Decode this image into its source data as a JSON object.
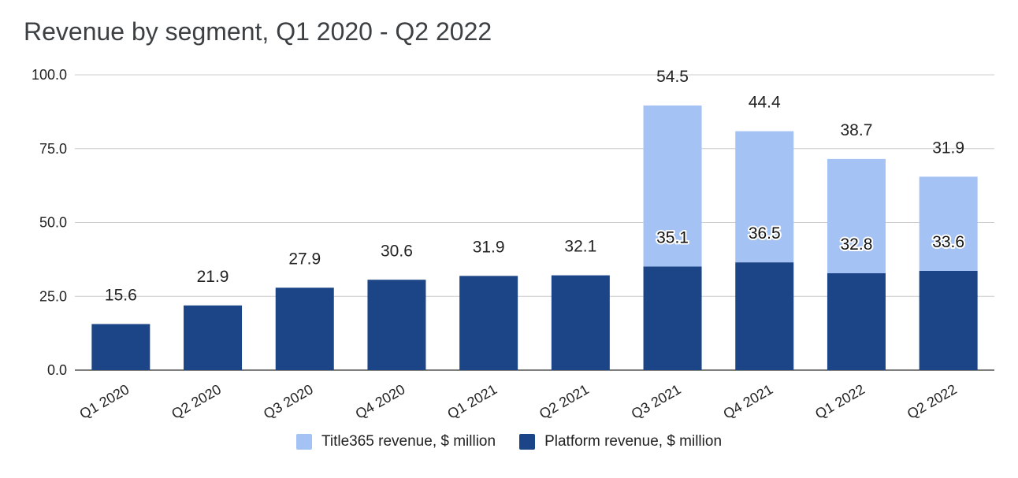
{
  "chart_data": {
    "type": "bar",
    "stacked": true,
    "title": "Revenue by segment, Q1 2020 - Q2 2022",
    "categories": [
      "Q1 2020",
      "Q2 2020",
      "Q3 2020",
      "Q4 2020",
      "Q1 2021",
      "Q2 2021",
      "Q3 2021",
      "Q4 2021",
      "Q1 2022",
      "Q2 2022"
    ],
    "series": [
      {
        "name": "Platform revenue, $ million",
        "color": "#1c4587",
        "values": [
          15.6,
          21.9,
          27.9,
          30.6,
          31.9,
          32.1,
          35.1,
          36.5,
          32.8,
          33.6
        ]
      },
      {
        "name": "Title365 revenue, $ million",
        "color": "#a4c2f4",
        "values": [
          null,
          null,
          null,
          null,
          null,
          null,
          54.5,
          44.4,
          38.7,
          31.9
        ]
      }
    ],
    "data_labels": {
      "platform": [
        "15.6",
        "21.9",
        "27.9",
        "30.6",
        "31.9",
        "32.1",
        "35.1",
        "36.5",
        "32.8",
        "33.6"
      ],
      "title365": [
        "",
        "",
        "",
        "",
        "",
        "",
        "54.5",
        "44.4",
        "38.7",
        "31.9"
      ]
    },
    "ylim": [
      0,
      100
    ],
    "yticks": [
      "0.0",
      "25.0",
      "50.0",
      "75.0",
      "100.0"
    ],
    "grid": true,
    "legend_position": "bottom",
    "xlabel": "",
    "ylabel": ""
  }
}
